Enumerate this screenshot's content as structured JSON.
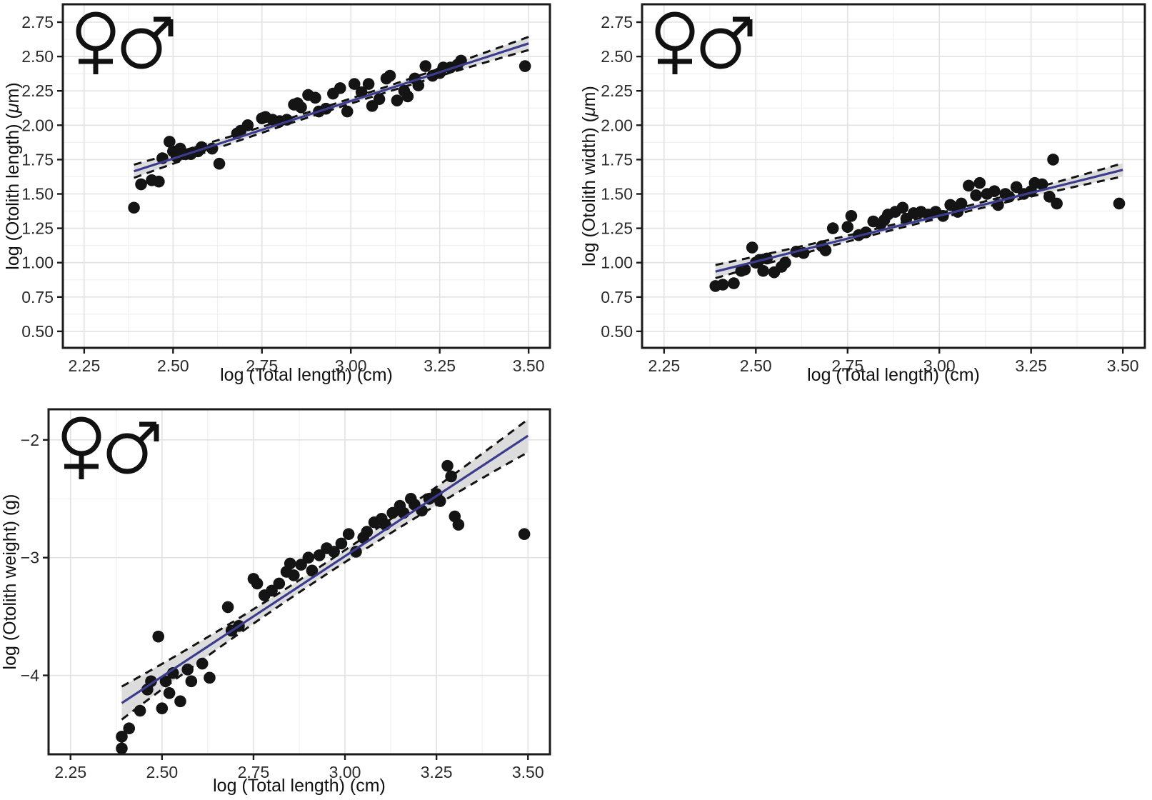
{
  "style": {
    "background": "#ffffff",
    "point_color": "#141414",
    "regression_line_color": "#3b3c8e",
    "ci_band_color": "#dcdcdc",
    "ci_edge_color": "#131313",
    "panel_border_color": "#1b1b1b",
    "grid_major_color": "#e2e2e2",
    "grid_minor_color": "#f0f0f0",
    "tick_color": "#1b1b1b",
    "tick_label_color": "#2b2b2b",
    "axis_title_color": "#111111",
    "sex_symbol_color": "#111111"
  },
  "legend": {
    "symbols": [
      {
        "name": "female-symbol",
        "glyph": "♀"
      },
      {
        "name": "male-symbol",
        "glyph": "♂"
      }
    ]
  },
  "chart_data": [
    {
      "id": "otolith-length",
      "type": "scatter",
      "title": "",
      "xlabel": "log (Total length) (cm)",
      "ylabel": "log (Otolith length) (μm)",
      "xlim": [
        2.19,
        3.56
      ],
      "ylim": [
        0.38,
        2.88
      ],
      "grid": true,
      "legend_position": "top-left-inside",
      "xticks": [
        {
          "v": 2.25,
          "label": "2.25"
        },
        {
          "v": 2.5,
          "label": "2.50"
        },
        {
          "v": 2.75,
          "label": "2.75"
        },
        {
          "v": 3.0,
          "label": "3.00"
        },
        {
          "v": 3.25,
          "label": "3.25"
        },
        {
          "v": 3.5,
          "label": "3.50"
        }
      ],
      "yticks": [
        {
          "v": 0.5,
          "label": "0.50"
        },
        {
          "v": 0.75,
          "label": "0.75"
        },
        {
          "v": 1.0,
          "label": "1.00"
        },
        {
          "v": 1.25,
          "label": "1.25"
        },
        {
          "v": 1.5,
          "label": "1.50"
        },
        {
          "v": 1.75,
          "label": "1.75"
        },
        {
          "v": 2.0,
          "label": "2.00"
        },
        {
          "v": 2.25,
          "label": "2.25"
        },
        {
          "v": 2.5,
          "label": "2.50"
        },
        {
          "v": 2.75,
          "label": "2.75"
        }
      ],
      "regression": {
        "x0": 2.39,
        "y0": 1.665,
        "x1": 3.5,
        "y1": 2.595,
        "ci_mid": 0.018,
        "ci_end": 0.048
      },
      "points": [
        [
          2.39,
          1.4
        ],
        [
          2.41,
          1.57
        ],
        [
          2.44,
          1.6
        ],
        [
          2.46,
          1.59
        ],
        [
          2.47,
          1.76
        ],
        [
          2.49,
          1.88
        ],
        [
          2.5,
          1.81
        ],
        [
          2.51,
          1.77
        ],
        [
          2.52,
          1.83
        ],
        [
          2.53,
          1.79
        ],
        [
          2.55,
          1.79
        ],
        [
          2.57,
          1.81
        ],
        [
          2.58,
          1.84
        ],
        [
          2.61,
          1.83
        ],
        [
          2.63,
          1.72
        ],
        [
          2.68,
          1.94
        ],
        [
          2.69,
          1.96
        ],
        [
          2.71,
          2.0
        ],
        [
          2.75,
          2.05
        ],
        [
          2.76,
          2.06
        ],
        [
          2.78,
          2.04
        ],
        [
          2.8,
          2.03
        ],
        [
          2.82,
          2.04
        ],
        [
          2.84,
          2.15
        ],
        [
          2.85,
          2.16
        ],
        [
          2.86,
          2.13
        ],
        [
          2.88,
          2.22
        ],
        [
          2.9,
          2.2
        ],
        [
          2.91,
          2.1
        ],
        [
          2.93,
          2.12
        ],
        [
          2.95,
          2.23
        ],
        [
          2.97,
          2.27
        ],
        [
          2.99,
          2.1
        ],
        [
          3.01,
          2.3
        ],
        [
          3.03,
          2.24
        ],
        [
          3.05,
          2.3
        ],
        [
          3.06,
          2.14
        ],
        [
          3.08,
          2.19
        ],
        [
          3.1,
          2.34
        ],
        [
          3.11,
          2.36
        ],
        [
          3.13,
          2.18
        ],
        [
          3.15,
          2.25
        ],
        [
          3.16,
          2.21
        ],
        [
          3.18,
          2.34
        ],
        [
          3.19,
          2.29
        ],
        [
          3.21,
          2.43
        ],
        [
          3.23,
          2.36
        ],
        [
          3.25,
          2.38
        ],
        [
          3.26,
          2.42
        ],
        [
          3.28,
          2.42
        ],
        [
          3.3,
          2.44
        ],
        [
          3.31,
          2.47
        ],
        [
          3.49,
          2.43
        ]
      ]
    },
    {
      "id": "otolith-width",
      "type": "scatter",
      "title": "",
      "xlabel": "log (Total length) (cm)",
      "ylabel": "log (Otolith width) (μm)",
      "xlim": [
        2.19,
        3.56
      ],
      "ylim": [
        0.38,
        2.88
      ],
      "grid": true,
      "legend_position": "top-left-inside",
      "xticks": [
        {
          "v": 2.25,
          "label": "2.25"
        },
        {
          "v": 2.5,
          "label": "2.50"
        },
        {
          "v": 2.75,
          "label": "2.75"
        },
        {
          "v": 3.0,
          "label": "3.00"
        },
        {
          "v": 3.25,
          "label": "3.25"
        },
        {
          "v": 3.5,
          "label": "3.50"
        }
      ],
      "yticks": [
        {
          "v": 0.5,
          "label": "0.50"
        },
        {
          "v": 0.75,
          "label": "0.75"
        },
        {
          "v": 1.0,
          "label": "1.00"
        },
        {
          "v": 1.25,
          "label": "1.25"
        },
        {
          "v": 1.5,
          "label": "1.50"
        },
        {
          "v": 1.75,
          "label": "1.75"
        },
        {
          "v": 2.0,
          "label": "2.00"
        },
        {
          "v": 2.25,
          "label": "2.25"
        },
        {
          "v": 2.5,
          "label": "2.50"
        },
        {
          "v": 2.75,
          "label": "2.75"
        }
      ],
      "regression": {
        "x0": 2.39,
        "y0": 0.935,
        "x1": 3.5,
        "y1": 1.675,
        "ci_mid": 0.018,
        "ci_end": 0.048
      },
      "points": [
        [
          2.39,
          0.83
        ],
        [
          2.41,
          0.84
        ],
        [
          2.44,
          0.85
        ],
        [
          2.46,
          0.94
        ],
        [
          2.47,
          0.95
        ],
        [
          2.49,
          1.11
        ],
        [
          2.5,
          1.0
        ],
        [
          2.51,
          1.02
        ],
        [
          2.52,
          0.94
        ],
        [
          2.53,
          1.03
        ],
        [
          2.55,
          0.93
        ],
        [
          2.57,
          0.97
        ],
        [
          2.58,
          1.0
        ],
        [
          2.61,
          1.08
        ],
        [
          2.63,
          1.07
        ],
        [
          2.68,
          1.12
        ],
        [
          2.69,
          1.09
        ],
        [
          2.71,
          1.25
        ],
        [
          2.75,
          1.26
        ],
        [
          2.76,
          1.34
        ],
        [
          2.78,
          1.2
        ],
        [
          2.8,
          1.22
        ],
        [
          2.82,
          1.3
        ],
        [
          2.84,
          1.28
        ],
        [
          2.85,
          1.31
        ],
        [
          2.86,
          1.35
        ],
        [
          2.88,
          1.37
        ],
        [
          2.9,
          1.4
        ],
        [
          2.91,
          1.32
        ],
        [
          2.93,
          1.36
        ],
        [
          2.95,
          1.37
        ],
        [
          2.97,
          1.35
        ],
        [
          2.99,
          1.37
        ],
        [
          3.01,
          1.34
        ],
        [
          3.03,
          1.42
        ],
        [
          3.05,
          1.37
        ],
        [
          3.06,
          1.43
        ],
        [
          3.08,
          1.56
        ],
        [
          3.1,
          1.49
        ],
        [
          3.11,
          1.58
        ],
        [
          3.13,
          1.5
        ],
        [
          3.15,
          1.52
        ],
        [
          3.16,
          1.42
        ],
        [
          3.18,
          1.5
        ],
        [
          3.19,
          1.48
        ],
        [
          3.21,
          1.55
        ],
        [
          3.23,
          1.5
        ],
        [
          3.25,
          1.52
        ],
        [
          3.26,
          1.58
        ],
        [
          3.28,
          1.57
        ],
        [
          3.3,
          1.48
        ],
        [
          3.31,
          1.75
        ],
        [
          3.32,
          1.43
        ],
        [
          3.49,
          1.43
        ]
      ]
    },
    {
      "id": "otolith-weight",
      "type": "scatter",
      "title": "",
      "xlabel": "log (Total length) (cm)",
      "ylabel": "log (Otolith weight) (g)",
      "xlim": [
        2.19,
        3.56
      ],
      "ylim": [
        -4.67,
        -1.74
      ],
      "grid": true,
      "legend_position": "top-left-inside",
      "xticks": [
        {
          "v": 2.25,
          "label": "2.25"
        },
        {
          "v": 2.5,
          "label": "2.50"
        },
        {
          "v": 2.75,
          "label": "2.75"
        },
        {
          "v": 3.0,
          "label": "3.00"
        },
        {
          "v": 3.25,
          "label": "3.25"
        },
        {
          "v": 3.5,
          "label": "3.50"
        }
      ],
      "yticks": [
        {
          "v": -2,
          "label": "−2"
        },
        {
          "v": -3,
          "label": "−3"
        },
        {
          "v": -4,
          "label": "−4"
        }
      ],
      "regression": {
        "x0": 2.39,
        "y0": -4.235,
        "x1": 3.5,
        "y1": -1.965,
        "ci_mid": 0.05,
        "ci_end": 0.14
      },
      "points": [
        [
          2.39,
          -4.62
        ],
        [
          2.39,
          -4.52
        ],
        [
          2.41,
          -4.45
        ],
        [
          2.44,
          -4.3
        ],
        [
          2.46,
          -4.12
        ],
        [
          2.47,
          -4.05
        ],
        [
          2.49,
          -3.67
        ],
        [
          2.5,
          -4.28
        ],
        [
          2.51,
          -4.05
        ],
        [
          2.52,
          -4.15
        ],
        [
          2.53,
          -3.98
        ],
        [
          2.55,
          -4.22
        ],
        [
          2.57,
          -3.95
        ],
        [
          2.58,
          -4.05
        ],
        [
          2.61,
          -3.9
        ],
        [
          2.63,
          -4.02
        ],
        [
          2.68,
          -3.42
        ],
        [
          2.69,
          -3.62
        ],
        [
          2.71,
          -3.58
        ],
        [
          2.75,
          -3.18
        ],
        [
          2.76,
          -3.22
        ],
        [
          2.78,
          -3.32
        ],
        [
          2.8,
          -3.28
        ],
        [
          2.82,
          -3.22
        ],
        [
          2.84,
          -3.12
        ],
        [
          2.85,
          -3.05
        ],
        [
          2.86,
          -3.15
        ],
        [
          2.88,
          -3.06
        ],
        [
          2.9,
          -3.0
        ],
        [
          2.91,
          -3.11
        ],
        [
          2.93,
          -2.98
        ],
        [
          2.95,
          -2.92
        ],
        [
          2.97,
          -2.95
        ],
        [
          2.99,
          -2.88
        ],
        [
          3.01,
          -2.8
        ],
        [
          3.03,
          -2.95
        ],
        [
          3.05,
          -2.83
        ],
        [
          3.06,
          -2.78
        ],
        [
          3.08,
          -2.7
        ],
        [
          3.1,
          -2.67
        ],
        [
          3.11,
          -2.72
        ],
        [
          3.13,
          -2.62
        ],
        [
          3.15,
          -2.56
        ],
        [
          3.16,
          -2.62
        ],
        [
          3.18,
          -2.5
        ],
        [
          3.19,
          -2.55
        ],
        [
          3.21,
          -2.6
        ],
        [
          3.23,
          -2.5
        ],
        [
          3.25,
          -2.46
        ],
        [
          3.26,
          -2.52
        ],
        [
          3.28,
          -2.22
        ],
        [
          3.29,
          -2.31
        ],
        [
          3.3,
          -2.65
        ],
        [
          3.31,
          -2.72
        ],
        [
          3.49,
          -2.8
        ]
      ]
    }
  ]
}
